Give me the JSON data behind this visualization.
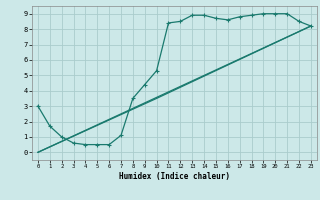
{
  "xlabel": "Humidex (Indice chaleur)",
  "bg_color": "#cce8e8",
  "grid_color": "#aacccc",
  "line_color": "#1a7a6e",
  "xlim": [
    -0.5,
    23.5
  ],
  "ylim": [
    -0.5,
    9.5
  ],
  "xticks": [
    0,
    1,
    2,
    3,
    4,
    5,
    6,
    7,
    8,
    9,
    10,
    11,
    12,
    13,
    14,
    15,
    16,
    17,
    18,
    19,
    20,
    21,
    22,
    23
  ],
  "yticks": [
    0,
    1,
    2,
    3,
    4,
    5,
    6,
    7,
    8,
    9
  ],
  "line1_x": [
    0,
    1,
    2,
    3,
    4,
    5,
    6,
    7,
    8,
    9,
    10,
    11,
    12,
    13,
    14,
    15,
    16,
    17,
    18,
    19,
    20,
    21,
    22,
    23
  ],
  "line1_y": [
    3.0,
    1.7,
    1.0,
    0.6,
    0.5,
    0.5,
    0.5,
    1.1,
    3.5,
    4.4,
    5.3,
    8.4,
    8.5,
    8.9,
    8.9,
    8.7,
    8.6,
    8.8,
    8.9,
    9.0,
    9.0,
    9.0,
    8.5,
    8.2
  ],
  "line2_x": [
    0,
    23
  ],
  "line2_y": [
    0,
    8.2
  ],
  "line3_x": [
    0,
    10,
    23
  ],
  "line3_y": [
    0,
    3.5,
    8.2
  ]
}
